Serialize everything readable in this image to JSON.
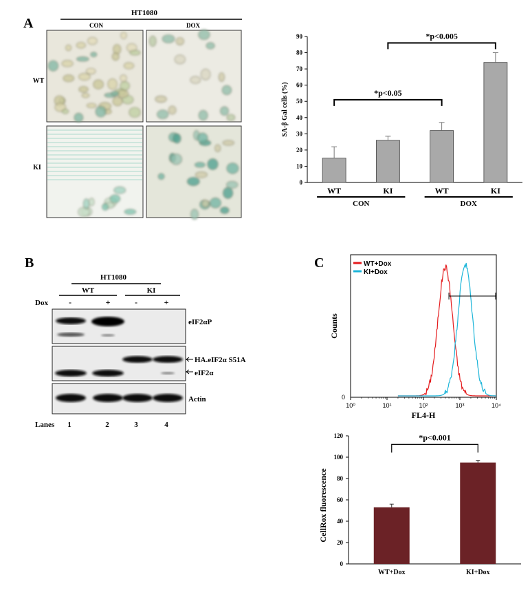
{
  "panels": {
    "a_label": "A",
    "b_label": "B",
    "c_label": "C"
  },
  "micrographs": {
    "cell_line": "HT1080",
    "col_labels": [
      "CON",
      "DOX"
    ],
    "row_labels": [
      "WT",
      "KI"
    ]
  },
  "western": {
    "cell_line": "HT1080",
    "group_labels": [
      "WT",
      "KI"
    ],
    "dox_label": "Dox",
    "dox_marks": [
      "-",
      "+",
      "-",
      "+"
    ],
    "band_labels": [
      "eIF2αP",
      "HA.eIF2α S51A",
      "eIF2α",
      "Actin"
    ],
    "lanes_label": "Lanes",
    "lane_numbers": [
      "1",
      "2",
      "3",
      "4"
    ]
  },
  "colors": {
    "bar_gray": "#a9a9a9",
    "bar_maroon": "#6b2226",
    "wt_line": "#e41a1c",
    "ki_line": "#1cb5d9"
  },
  "chart_data": [
    {
      "type": "bar",
      "ylabel": "SA-β Gal cells (%)",
      "ylim": [
        0,
        90
      ],
      "yticks": [
        0,
        10,
        20,
        30,
        40,
        50,
        60,
        70,
        80,
        90
      ],
      "categories": [
        "WT",
        "KI",
        "WT",
        "KI"
      ],
      "groups": [
        "CON",
        "DOX"
      ],
      "values": [
        15,
        26,
        32,
        74
      ],
      "errors": [
        7,
        2.5,
        5,
        6
      ],
      "annotations": [
        "*p<0.05",
        "*p<0.005"
      ],
      "grid": false
    },
    {
      "type": "line",
      "xlabel": "FL4-H",
      "ylabel": "Counts",
      "x_scale": "log",
      "x_ticks": [
        "10⁰",
        "10¹",
        "10²",
        "10³",
        "10⁴"
      ],
      "y_ticks": [
        "0"
      ],
      "legend": "top-left",
      "series": [
        {
          "name": "WT+Dox",
          "peak_x": 400,
          "peak_height": 0.95
        },
        {
          "name": "KI+Dox",
          "peak_x": 1400,
          "peak_height": 0.97
        }
      ]
    },
    {
      "type": "bar",
      "ylabel": "CellRox  fluorescence",
      "ylim": [
        0,
        120
      ],
      "yticks": [
        0,
        20,
        40,
        60,
        80,
        100,
        120
      ],
      "categories": [
        "WT+Dox",
        "KI+Dox"
      ],
      "values": [
        53,
        95
      ],
      "errors": [
        3,
        2
      ],
      "annotations": [
        "*p<0.001"
      ],
      "grid": false
    }
  ]
}
